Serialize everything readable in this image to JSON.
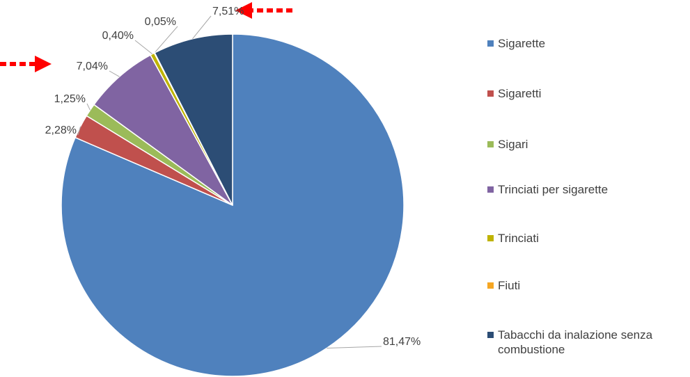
{
  "chart_data": {
    "type": "pie",
    "categories": [
      "Sigarette",
      "Sigaretti",
      "Sigari",
      "Trinciati per sigarette",
      "Trinciati",
      "Fiuti",
      "Tabacchi da inalazione senza combustione"
    ],
    "values": [
      81.47,
      2.28,
      1.25,
      7.04,
      0.4,
      0.05,
      7.51
    ],
    "value_labels": [
      "81,47%",
      "2,28%",
      "1,25%",
      "7,04%",
      "0,40%",
      "0,05%",
      "7,51%"
    ],
    "colors": [
      "#4f81bd",
      "#c0504d",
      "#9bbb59",
      "#8064a2",
      "#bfb300",
      "#f5a623",
      "#2c4d75"
    ],
    "legend": "right"
  }
}
